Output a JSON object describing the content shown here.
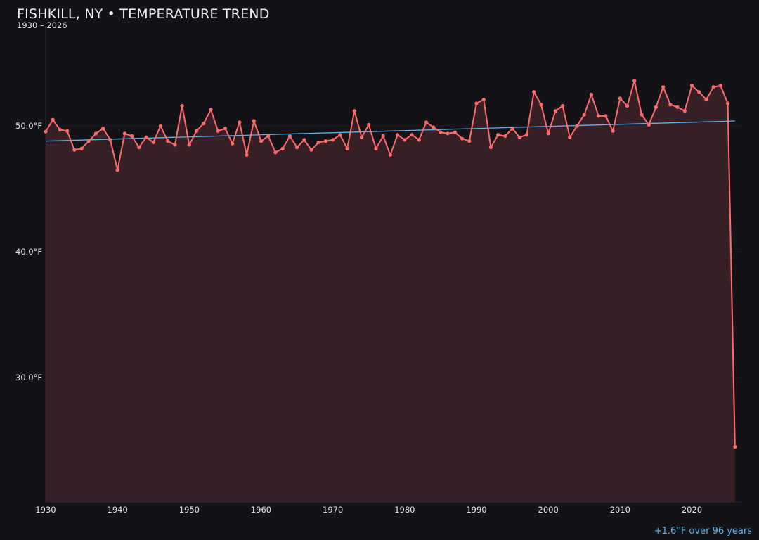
{
  "chart_data": {
    "type": "line",
    "title": "FISHKILL, NY • TEMPERATURE TREND",
    "subtitle": "1930 – 2026",
    "annotation": "+1.6°F over 96 years",
    "xlim": [
      1930,
      2026.9
    ],
    "ylim": [
      20,
      58
    ],
    "x_ticks": [
      "1930",
      "1940",
      "1950",
      "1960",
      "1970",
      "1980",
      "1990",
      "2000",
      "2010",
      "2020"
    ],
    "y_ticks": [
      {
        "value": 30,
        "label": "30.0°F"
      },
      {
        "value": 40,
        "label": "40.0°F"
      },
      {
        "value": 50,
        "label": "50.0°F"
      }
    ],
    "grid": true,
    "colors": {
      "line": "#ff6b6b",
      "fill": "#362026",
      "trend": "#5fb4ee",
      "background": "#131217"
    },
    "x": [
      1930,
      1931,
      1932,
      1933,
      1934,
      1935,
      1936,
      1937,
      1938,
      1939,
      1940,
      1941,
      1942,
      1943,
      1944,
      1945,
      1946,
      1947,
      1948,
      1949,
      1950,
      1951,
      1952,
      1953,
      1954,
      1955,
      1956,
      1957,
      1958,
      1959,
      1960,
      1961,
      1962,
      1963,
      1964,
      1965,
      1966,
      1967,
      1968,
      1969,
      1970,
      1971,
      1972,
      1973,
      1974,
      1975,
      1976,
      1977,
      1978,
      1979,
      1980,
      1981,
      1982,
      1983,
      1984,
      1985,
      1986,
      1987,
      1988,
      1989,
      1990,
      1991,
      1992,
      1993,
      1994,
      1995,
      1996,
      1997,
      1998,
      1999,
      2000,
      2001,
      2002,
      2003,
      2004,
      2005,
      2006,
      2007,
      2008,
      2009,
      2010,
      2011,
      2012,
      2013,
      2014,
      2015,
      2016,
      2017,
      2018,
      2019,
      2020,
      2021,
      2022,
      2023,
      2024,
      2025,
      2026
    ],
    "values": [
      49.55,
      50.5,
      49.7,
      49.6,
      48.1,
      48.2,
      48.8,
      49.4,
      49.8,
      48.9,
      46.5,
      49.4,
      49.2,
      48.3,
      49.1,
      48.7,
      50.0,
      48.8,
      48.5,
      51.6,
      48.5,
      49.6,
      50.2,
      51.3,
      49.6,
      49.8,
      48.6,
      50.3,
      47.7,
      50.4,
      48.8,
      49.2,
      47.9,
      48.2,
      49.2,
      48.3,
      48.9,
      48.1,
      48.7,
      48.8,
      48.9,
      49.3,
      48.2,
      51.2,
      49.1,
      50.1,
      48.2,
      49.2,
      47.7,
      49.3,
      48.9,
      49.3,
      48.9,
      50.3,
      49.9,
      49.5,
      49.4,
      49.5,
      49.0,
      48.8,
      51.8,
      52.1,
      48.3,
      49.3,
      49.2,
      49.8,
      49.1,
      49.3,
      52.7,
      51.7,
      49.4,
      51.2,
      51.6,
      49.1,
      50.0,
      50.9,
      52.5,
      50.8,
      50.8,
      49.6,
      52.2,
      51.6,
      53.6,
      50.9,
      50.1,
      51.5,
      53.1,
      51.7,
      51.5,
      51.2,
      53.2,
      52.7,
      52.1,
      53.1,
      53.2,
      51.8,
      24.5
    ],
    "trend": {
      "start": {
        "x": 1930,
        "y": 48.8
      },
      "end": {
        "x": 2026,
        "y": 50.4
      }
    }
  }
}
